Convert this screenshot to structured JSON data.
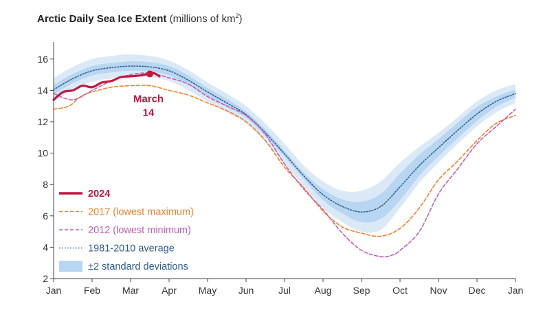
{
  "chart_data": {
    "type": "line",
    "title": "Arctic Daily Sea Ice Extent",
    "unit_prefix": "(millions of km",
    "unit_sup": "2",
    "unit_suffix": ")",
    "ylim": [
      2,
      17
    ],
    "yticks": [
      2,
      4,
      6,
      8,
      10,
      12,
      14,
      16
    ],
    "xlim": [
      0,
      12
    ],
    "month_ticks": [
      "Jan",
      "Feb",
      "Mar",
      "Apr",
      "May",
      "Jun",
      "Jul",
      "Aug",
      "Sep",
      "Oct",
      "Nov",
      "Dec",
      "Jan"
    ],
    "legend_position": "bottom-left",
    "grid": false,
    "colors": {
      "y2024": "#c0183f",
      "y2017": "#f0802a",
      "y2012": "#c45cb4",
      "average": "#2b5d8c",
      "std2": "#dbe9f7",
      "std1": "#b8d6f1",
      "legend_text_blue": "#2b5d8c"
    },
    "band_2sd": {
      "x": [
        0,
        0.5,
        1,
        1.5,
        2,
        2.5,
        3,
        3.5,
        4,
        4.5,
        5,
        5.5,
        6,
        6.5,
        7,
        7.5,
        8,
        8.5,
        9,
        9.5,
        10,
        10.5,
        11,
        11.5,
        12
      ],
      "lower": [
        13.3,
        14.0,
        14.55,
        14.75,
        14.85,
        14.85,
        14.6,
        14.0,
        13.3,
        12.6,
        11.9,
        10.7,
        9.3,
        7.9,
        6.5,
        5.6,
        5.0,
        5.1,
        6.5,
        8.1,
        9.4,
        10.6,
        11.7,
        12.6,
        13.2
      ],
      "upper": [
        14.8,
        15.5,
        16.0,
        16.2,
        16.3,
        16.2,
        15.9,
        15.3,
        14.5,
        13.8,
        13.0,
        11.9,
        10.6,
        9.2,
        8.2,
        7.6,
        7.6,
        8.2,
        9.4,
        10.4,
        11.3,
        12.3,
        13.3,
        14.0,
        14.4
      ]
    },
    "band_1sd": {
      "x": [
        0,
        0.5,
        1,
        1.5,
        2,
        2.5,
        3,
        3.5,
        4,
        4.5,
        5,
        5.5,
        6,
        6.5,
        7,
        7.5,
        8,
        8.5,
        9,
        9.5,
        10,
        10.5,
        11,
        11.5,
        12
      ],
      "lower": [
        13.75,
        14.45,
        14.95,
        15.15,
        15.25,
        15.2,
        14.95,
        14.35,
        13.65,
        12.95,
        12.25,
        11.1,
        9.75,
        8.35,
        7.0,
        6.15,
        5.6,
        5.8,
        7.0,
        8.55,
        9.8,
        10.95,
        12.05,
        12.95,
        13.55
      ],
      "upper": [
        14.35,
        15.05,
        15.55,
        15.75,
        15.85,
        15.8,
        15.55,
        14.95,
        14.15,
        13.45,
        12.65,
        11.5,
        10.15,
        8.75,
        7.7,
        7.05,
        6.9,
        7.4,
        8.7,
        9.9,
        10.9,
        11.95,
        12.95,
        13.6,
        14.05
      ]
    },
    "series": [
      {
        "name": "2024",
        "key": "y2024",
        "x": [
          0,
          0.25,
          0.5,
          0.75,
          1.0,
          1.25,
          1.5,
          1.75,
          2.0,
          2.25,
          2.45,
          2.6,
          2.75
        ],
        "y": [
          13.4,
          13.9,
          14.0,
          14.3,
          14.2,
          14.5,
          14.6,
          14.85,
          14.9,
          14.95,
          15.05,
          15.1,
          14.9
        ]
      },
      {
        "name": "2017 (lowest maximum)",
        "key": "y2017",
        "x": [
          0,
          0.4,
          0.7,
          1.0,
          1.5,
          2.0,
          2.5,
          3.0,
          3.5,
          4.0,
          4.5,
          5.0,
          5.5,
          6.0,
          6.5,
          7.0,
          7.5,
          8.0,
          8.5,
          9.0,
          9.5,
          10.0,
          10.5,
          11.0,
          11.5,
          12.0
        ],
        "y": [
          12.8,
          13.0,
          13.6,
          13.9,
          14.2,
          14.3,
          14.3,
          14.0,
          13.7,
          13.2,
          12.7,
          12.0,
          10.8,
          9.1,
          7.8,
          6.3,
          5.3,
          4.9,
          4.7,
          5.2,
          6.5,
          8.3,
          9.5,
          10.8,
          11.9,
          12.4
        ]
      },
      {
        "name": "2012 (lowest minimum)",
        "key": "y2012",
        "x": [
          0,
          0.5,
          1.0,
          1.5,
          2.0,
          2.5,
          3.0,
          3.5,
          4.0,
          4.5,
          5.0,
          5.5,
          6.0,
          6.5,
          7.0,
          7.5,
          8.0,
          8.5,
          8.8,
          9.0,
          9.5,
          10.0,
          10.5,
          11.0,
          11.5,
          12.0
        ],
        "y": [
          13.8,
          13.4,
          14.0,
          14.6,
          15.0,
          15.1,
          14.8,
          14.4,
          13.6,
          13.0,
          12.4,
          11.2,
          9.3,
          7.7,
          6.4,
          4.9,
          3.8,
          3.4,
          3.5,
          3.8,
          5.0,
          7.4,
          9.0,
          10.6,
          11.7,
          12.8
        ]
      },
      {
        "name": "1981-2010 average",
        "key": "average",
        "x": [
          0,
          0.5,
          1,
          1.5,
          2,
          2.5,
          3,
          3.5,
          4,
          4.5,
          5,
          5.5,
          6,
          6.5,
          7,
          7.5,
          8,
          8.5,
          9,
          9.5,
          10,
          10.5,
          11,
          11.5,
          12
        ],
        "y": [
          14.05,
          14.75,
          15.25,
          15.45,
          15.55,
          15.5,
          15.25,
          14.65,
          13.9,
          13.2,
          12.45,
          11.3,
          9.95,
          8.55,
          7.35,
          6.6,
          6.25,
          6.6,
          7.85,
          9.2,
          10.35,
          11.45,
          12.5,
          13.3,
          13.8
        ]
      }
    ],
    "marker_2024": {
      "x": 2.5,
      "y": 15.05
    },
    "annotation": {
      "line1": "March",
      "line2": "14"
    },
    "legend": [
      {
        "label": "2024",
        "style": "y2024"
      },
      {
        "label": "2017 (lowest maximum)",
        "style": "y2017"
      },
      {
        "label": "2012 (lowest minimum)",
        "style": "y2012"
      },
      {
        "label": "1981-2010 average",
        "style": "average"
      },
      {
        "label": "±2 standard deviations",
        "style": "std2"
      }
    ]
  }
}
